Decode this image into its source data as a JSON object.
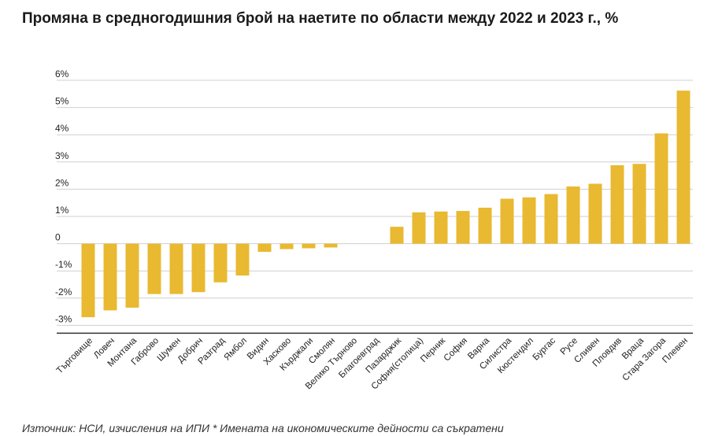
{
  "title": "Промяна в средногодишния брой на наетите по области между 2022 и 2023 г., %",
  "source": "Източник: НСИ, изчисления на ИПИ * Имената на икономическите дейности са съкратени",
  "colors": {
    "bar": "#E8B931",
    "grid": "#cfcfcf",
    "axis": "#333333"
  },
  "chart_data": {
    "type": "bar",
    "title": "Промяна в средногодишния брой на наетите по области между 2022 и 2023 г., %",
    "xlabel": "",
    "ylabel": "",
    "ylim": [
      -3,
      6
    ],
    "yticks": [
      {
        "value": 6,
        "label": "6%"
      },
      {
        "value": 5,
        "label": "5%"
      },
      {
        "value": 4,
        "label": "4%"
      },
      {
        "value": 3,
        "label": "3%"
      },
      {
        "value": 2,
        "label": "2%"
      },
      {
        "value": 1,
        "label": "1%"
      },
      {
        "value": 0,
        "label": "0"
      },
      {
        "value": -1,
        "label": "-1%"
      },
      {
        "value": -2,
        "label": "-2%"
      },
      {
        "value": -3,
        "label": "-3%"
      }
    ],
    "grid": true,
    "categories": [
      "Търговище",
      "Ловеч",
      "Монтана",
      "Габрово",
      "Шумен",
      "Добрич",
      "Разград",
      "Ямбол",
      "Видин",
      "Хасково",
      "Кърджали",
      "Смолян",
      "Велико Търново",
      "Благоевград",
      "Пазарджик",
      "София(столица)",
      "Перник",
      "София",
      "Варна",
      "Силистра",
      "Кюстендил",
      "Бургас",
      "Русе",
      "Сливен",
      "Пловдив",
      "Враца",
      "Стара Загора",
      "Плевен"
    ],
    "values": [
      -2.7,
      -2.45,
      -2.35,
      -1.85,
      -1.85,
      -1.78,
      -1.42,
      -1.17,
      -0.3,
      -0.2,
      -0.17,
      -0.14,
      0.0,
      0.0,
      0.62,
      1.15,
      1.18,
      1.2,
      1.32,
      1.65,
      1.7,
      1.82,
      2.1,
      2.2,
      2.88,
      2.93,
      4.05,
      5.62
    ]
  }
}
